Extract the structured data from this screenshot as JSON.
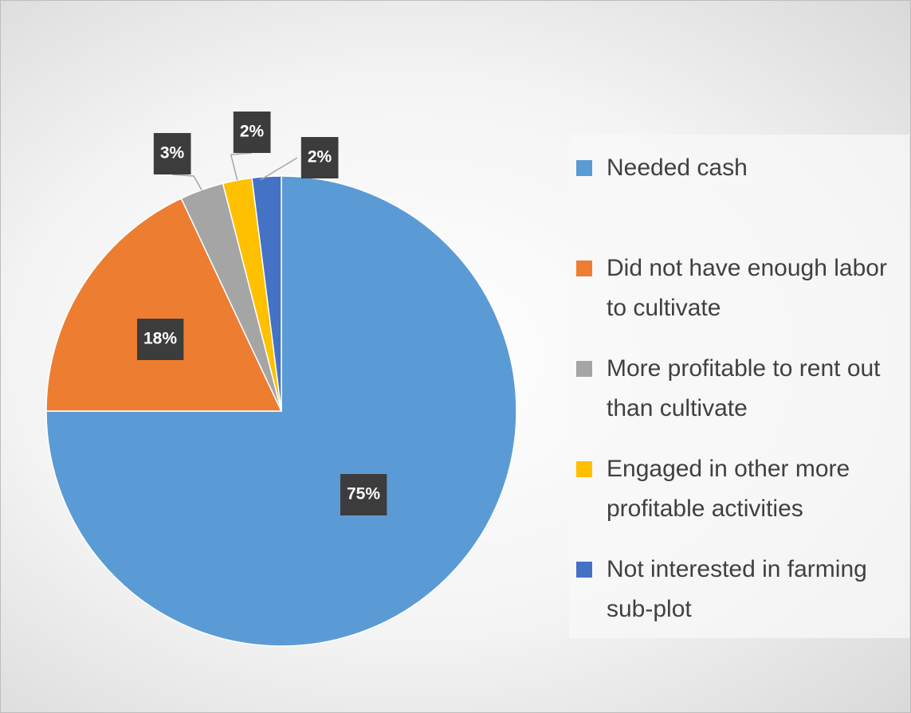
{
  "chart_data": {
    "type": "pie",
    "categories": [
      "Needed cash",
      "Did not have enough labor to cultivate",
      "More profitable to rent out than cultivate",
      "Engaged in other more profitable activities",
      "Not interested in farming sub-plot"
    ],
    "values": [
      75,
      18,
      3,
      2,
      2
    ],
    "value_labels": [
      "75%",
      "18%",
      "3%",
      "2%",
      "2%"
    ],
    "colors": [
      "#5b9bd5",
      "#ed7d31",
      "#a5a5a5",
      "#ffc000",
      "#4472c4"
    ],
    "legend": "right"
  }
}
